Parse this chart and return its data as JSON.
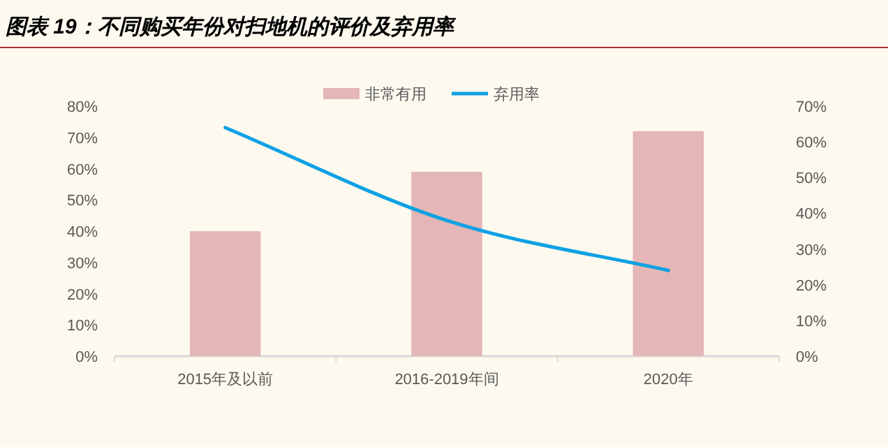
{
  "chart_data": {
    "type": "bar",
    "title": "图表 19：不同购买年份对扫地机的评价及弃用率",
    "categories": [
      "2015年及以前",
      "2016-2019年间",
      "2020年"
    ],
    "series": [
      {
        "name": "非常有用",
        "color": "#e4b6b5",
        "values": [
          40,
          59,
          72
        ]
      },
      {
        "name": "弃用率",
        "type": "line",
        "axis": "y2",
        "color": "#0ea1e4",
        "values": [
          64,
          38,
          24
        ]
      }
    ],
    "ylim": [
      0,
      80
    ],
    "yticks": [
      {
        "value": 0,
        "label": "0%"
      },
      {
        "value": 10,
        "label": "10%"
      },
      {
        "value": 20,
        "label": "20%"
      },
      {
        "value": 30,
        "label": "30%"
      },
      {
        "value": 40,
        "label": "40%"
      },
      {
        "value": 50,
        "label": "50%"
      },
      {
        "value": 60,
        "label": "60%"
      },
      {
        "value": 70,
        "label": "70%"
      },
      {
        "value": 80,
        "label": "80%"
      }
    ],
    "y2lim": [
      0,
      70
    ],
    "y2ticks": [
      {
        "value": 0,
        "label": "0%"
      },
      {
        "value": 10,
        "label": "10%"
      },
      {
        "value": 20,
        "label": "20%"
      },
      {
        "value": 30,
        "label": "30%"
      },
      {
        "value": 40,
        "label": "40%"
      },
      {
        "value": 50,
        "label": "50%"
      },
      {
        "value": 60,
        "label": "60%"
      },
      {
        "value": 70,
        "label": "70%"
      }
    ],
    "legend": "top",
    "grid": false,
    "marker": "none"
  }
}
